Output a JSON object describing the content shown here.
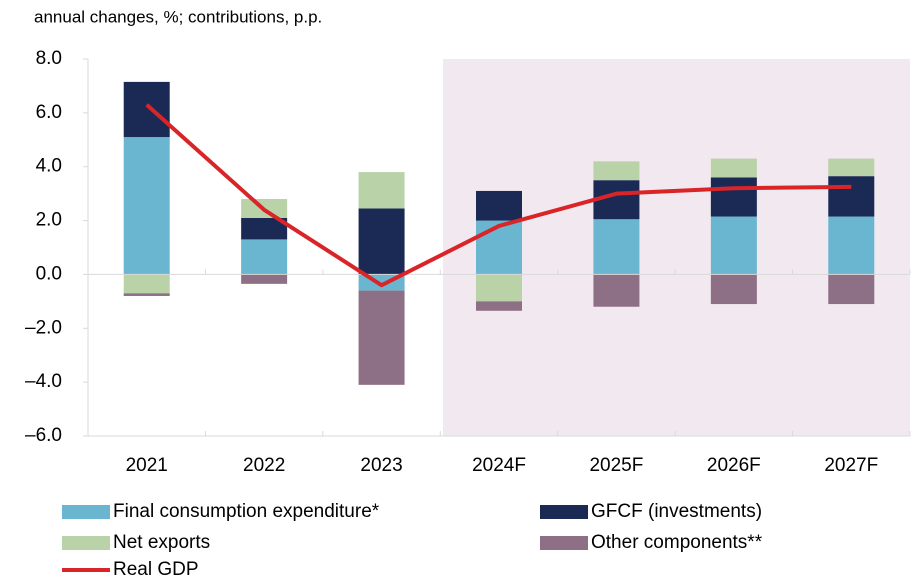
{
  "chart_data": {
    "type": "stacked-bar-line",
    "title": "annual changes, %; contributions, p.p.",
    "categories": [
      "2021",
      "2022",
      "2023",
      "2024F",
      "2025F",
      "2026F",
      "2027F"
    ],
    "series": [
      {
        "name": "Final consumption expenditure*",
        "color": "#6ab5d0",
        "values": [
          5.1,
          1.3,
          -0.6,
          2.0,
          2.05,
          2.15,
          2.15
        ]
      },
      {
        "name": "GFCF (investments)",
        "color": "#1b2a55",
        "values": [
          2.05,
          0.8,
          2.45,
          1.1,
          1.45,
          1.45,
          1.5
        ]
      },
      {
        "name": "Net exports",
        "color": "#b9d2a7",
        "values": [
          -0.7,
          0.7,
          1.35,
          -1.0,
          0.7,
          0.7,
          0.65
        ]
      },
      {
        "name": "Other components**",
        "color": "#8e7086",
        "values": [
          -0.1,
          -0.35,
          -3.5,
          -0.35,
          -1.2,
          -1.1,
          -1.1
        ]
      },
      {
        "name": "Real GDP",
        "color": "#d92428",
        "type": "line",
        "values": [
          6.3,
          2.4,
          -0.4,
          1.8,
          3.0,
          3.2,
          3.25
        ]
      }
    ],
    "ylim": [
      -6,
      8
    ],
    "yticks": [
      {
        "value": -6,
        "label": "–6.0"
      },
      {
        "value": -4,
        "label": "–4.0"
      },
      {
        "value": -2,
        "label": "–2.0"
      },
      {
        "value": 0,
        "label": "0.0"
      },
      {
        "value": 2,
        "label": "2.0"
      },
      {
        "value": 4,
        "label": "4.0"
      },
      {
        "value": 6,
        "label": "6.0"
      },
      {
        "value": 8,
        "label": "8.0"
      }
    ]
  }
}
